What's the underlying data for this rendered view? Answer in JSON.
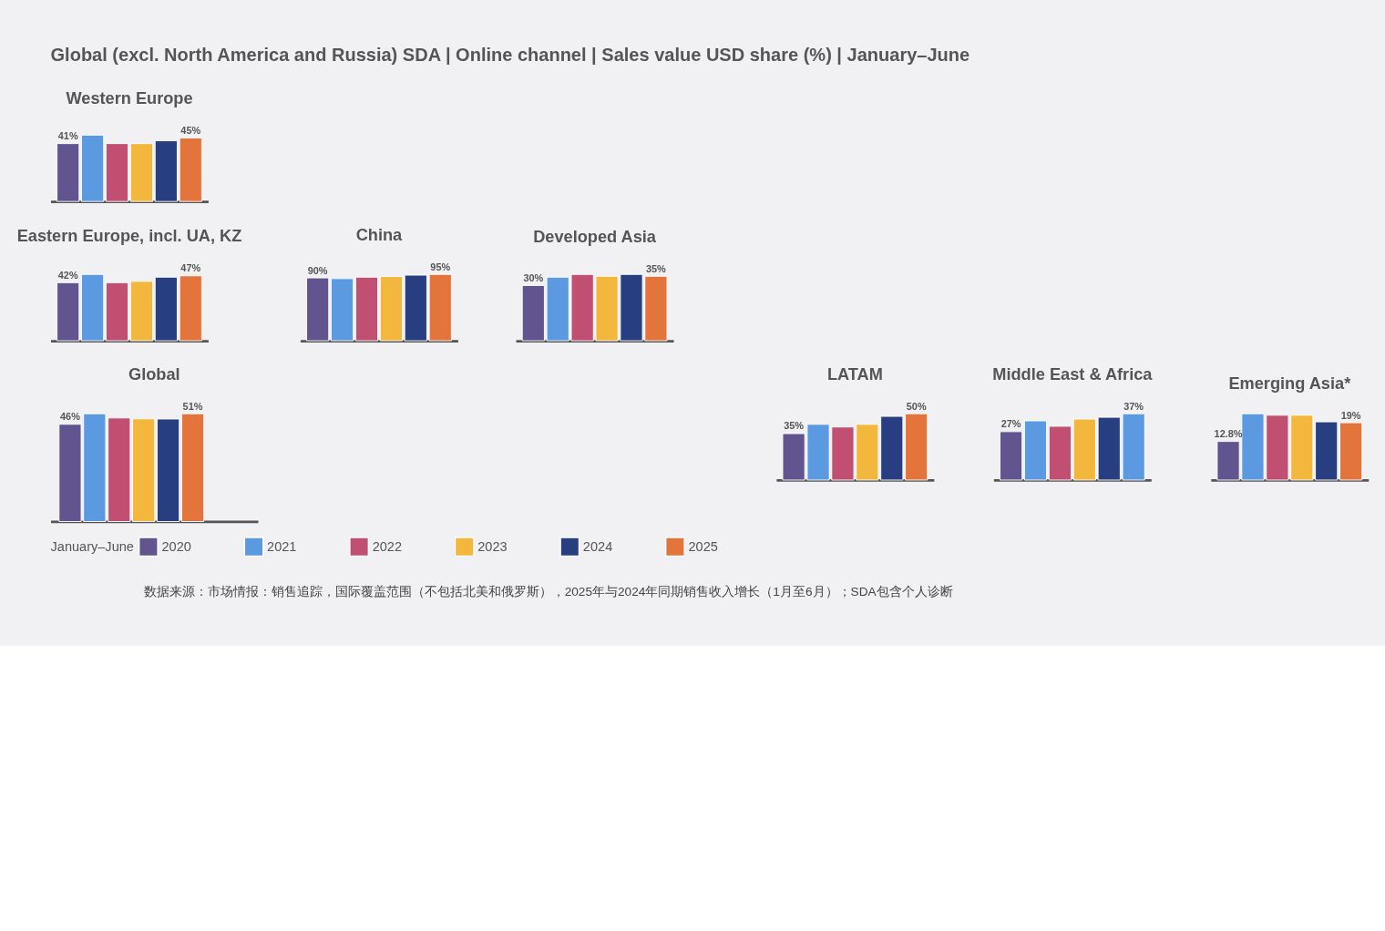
{
  "chart_data": [
    {
      "type": "bar",
      "title": "Western Europe",
      "tick_labels": false,
      "categories": [
        null
      ],
      "series": [
        {
          "color": "#62558f",
          "values": [
            41
          ],
          "value_labels": [
            "41%"
          ]
        },
        {
          "color": "#5b9ae0",
          "values": [
            47
          ]
        },
        {
          "color": "#c04f72",
          "values": [
            41
          ]
        },
        {
          "color": "#f4b73e",
          "values": [
            41
          ]
        },
        {
          "color": "#273e80",
          "values": [
            43
          ]
        },
        {
          "color": "#e2743c",
          "values": [
            45
          ],
          "value_labels": [
            "45%"
          ]
        }
      ]
    },
    {
      "type": "bar",
      "title": "Eastern Europe, incl. UA, KZ",
      "tick_labels": false,
      "categories": [
        null
      ],
      "series": [
        {
          "color": "#62558f",
          "values": [
            42
          ],
          "value_labels": [
            "42%"
          ]
        },
        {
          "color": "#5b9ae0",
          "values": [
            48
          ]
        },
        {
          "color": "#c04f72",
          "values": [
            42
          ]
        },
        {
          "color": "#f4b73e",
          "values": [
            43
          ]
        },
        {
          "color": "#273e80",
          "values": [
            46
          ]
        },
        {
          "color": "#e2743c",
          "values": [
            47
          ],
          "value_labels": [
            "47%"
          ]
        }
      ]
    },
    {
      "type": "bar",
      "title": "China",
      "tick_labels": false,
      "categories": [
        null
      ],
      "series": [
        {
          "color": "#62558f",
          "values": [
            90
          ],
          "value_labels": [
            "90%"
          ]
        },
        {
          "color": "#5b9ae0",
          "values": [
            89
          ]
        },
        {
          "color": "#c04f72",
          "values": [
            91
          ]
        },
        {
          "color": "#f4b73e",
          "values": [
            92
          ]
        },
        {
          "color": "#273e80",
          "values": [
            94
          ]
        },
        {
          "color": "#e2743c",
          "values": [
            95
          ],
          "value_labels": [
            "95%"
          ]
        }
      ]
    },
    {
      "type": "bar",
      "title": "Developed Asia",
      "tick_labels": false,
      "categories": [
        null
      ],
      "series": [
        {
          "color": "#62558f",
          "values": [
            30
          ],
          "value_labels": [
            "30%"
          ]
        },
        {
          "color": "#5b9ae0",
          "values": [
            34.5
          ]
        },
        {
          "color": "#c04f72",
          "values": [
            36
          ]
        },
        {
          "color": "#f4b73e",
          "values": [
            35
          ]
        },
        {
          "color": "#273e80",
          "values": [
            36
          ]
        },
        {
          "color": "#e2743c",
          "values": [
            35
          ],
          "value_labels": [
            "35%"
          ]
        }
      ]
    },
    {
      "type": "bar",
      "title": "Global",
      "tick_labels": false,
      "legend": "bottom",
      "legend_title": "January–June",
      "categories": [
        null
      ],
      "series": [
        {
          "name": "2020",
          "color": "#62558f",
          "values": [
            46
          ],
          "value_labels": [
            "46%"
          ]
        },
        {
          "name": "2021",
          "color": "#5b9ae0",
          "values": [
            51
          ]
        },
        {
          "name": "2022",
          "color": "#c04f72",
          "values": [
            49
          ]
        },
        {
          "name": "2023",
          "color": "#f4b73e",
          "values": [
            48.6
          ]
        },
        {
          "name": "2024",
          "color": "#273e80",
          "values": [
            48.5
          ]
        },
        {
          "name": "2025",
          "color": "#e2743c",
          "values": [
            51
          ],
          "value_labels": [
            "51%"
          ]
        }
      ]
    },
    {
      "type": "bar",
      "title": "LATAM",
      "tick_labels": false,
      "categories": [
        null
      ],
      "series": [
        {
          "color": "#62558f",
          "values": [
            35
          ],
          "value_labels": [
            "35%"
          ]
        },
        {
          "color": "#5b9ae0",
          "values": [
            42
          ]
        },
        {
          "color": "#c04f72",
          "values": [
            40
          ]
        },
        {
          "color": "#f4b73e",
          "values": [
            42
          ]
        },
        {
          "color": "#273e80",
          "values": [
            48
          ]
        },
        {
          "color": "#e2743c",
          "values": [
            50
          ],
          "value_labels": [
            "50%"
          ]
        }
      ]
    },
    {
      "type": "bar",
      "title": "Middle East & Africa",
      "tick_labels": false,
      "categories": [
        null
      ],
      "series": [
        {
          "color": "#62558f",
          "values": [
            27
          ],
          "value_labels": [
            "27%"
          ]
        },
        {
          "color": "#5b9ae0",
          "values": [
            33
          ]
        },
        {
          "color": "#c04f72",
          "values": [
            30
          ]
        },
        {
          "color": "#f4b73e",
          "values": [
            34
          ]
        },
        {
          "color": "#273e80",
          "values": [
            35
          ]
        },
        {
          "color": "#5b9ae0",
          "values": [
            37
          ],
          "value_labels": [
            "37%"
          ]
        }
      ]
    },
    {
      "type": "bar",
      "title": "Emerging Asia*",
      "tick_labels": false,
      "categories": [
        null
      ],
      "series": [
        {
          "color": "#62558f",
          "values": [
            12.8
          ],
          "value_labels": [
            "12.8%"
          ]
        },
        {
          "color": "#5b9ae0",
          "values": [
            22
          ]
        },
        {
          "color": "#c04f72",
          "values": [
            21.5
          ]
        },
        {
          "color": "#f4b73e",
          "values": [
            21.5
          ]
        },
        {
          "color": "#273e80",
          "values": [
            19.3
          ]
        },
        {
          "color": "#e2743c",
          "values": [
            19
          ],
          "value_labels": [
            "19%"
          ]
        }
      ]
    },
    {
      "type": "other",
      "title": "Global (excl. North America and Russia) SDA | Online channel | Sales value USD share (%) | January–June",
      "annotations": [
        "数据来源：市场情报：销售追踪，国际覆盖范围（不包括北美和俄罗斯），2025年与2024年同期销售收入增长（1月至6月）；SDA包含个人诊断"
      ]
    }
  ]
}
